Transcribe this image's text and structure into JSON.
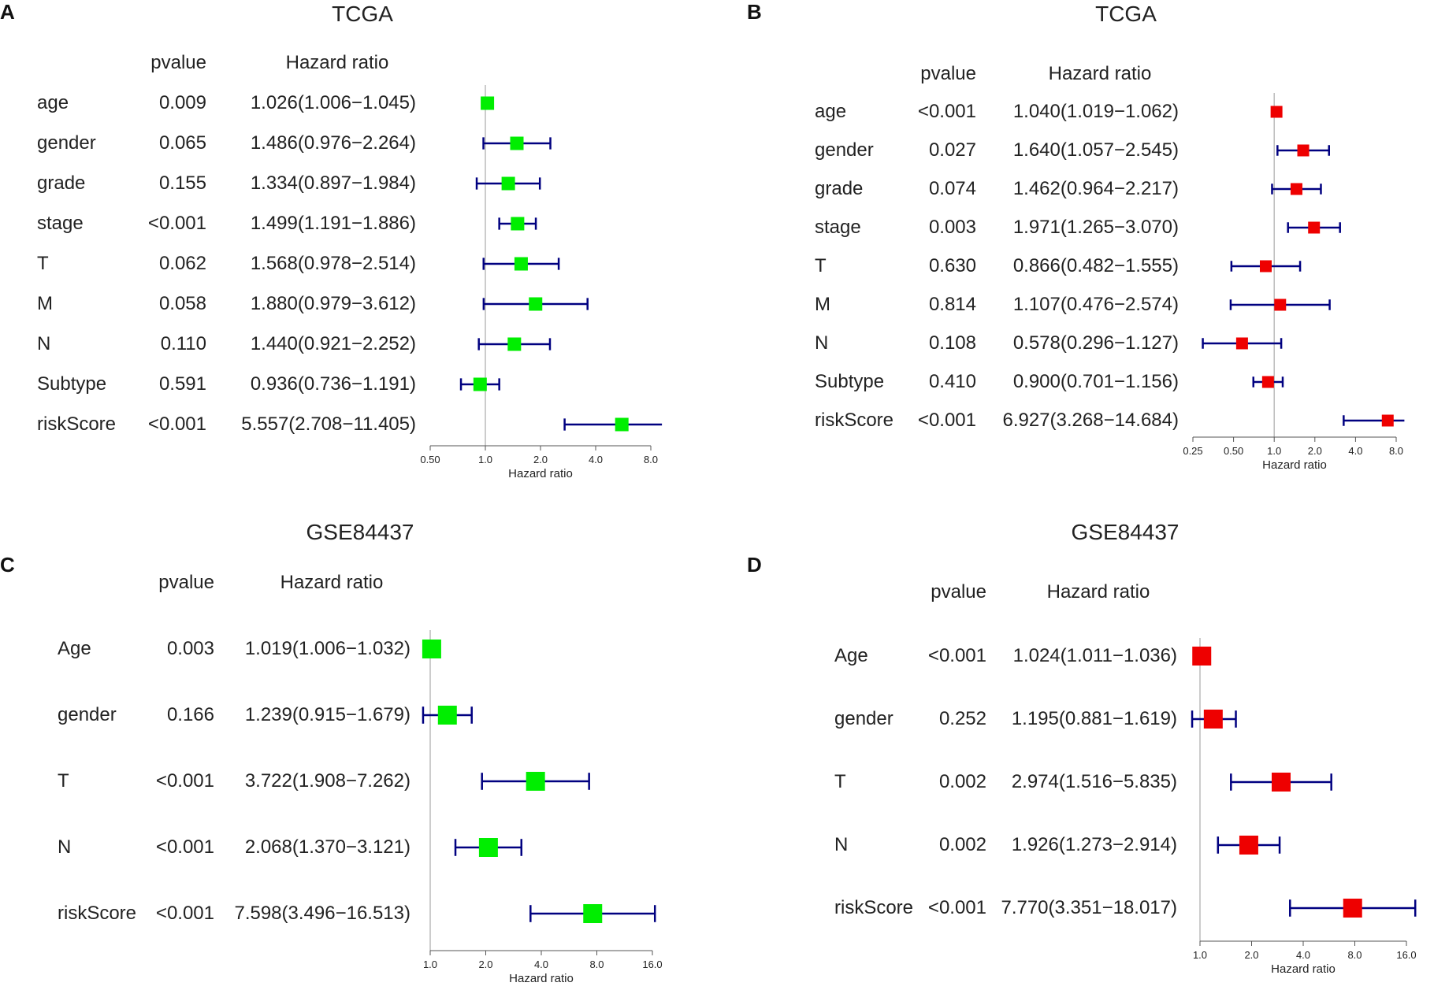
{
  "panels": [
    {
      "letter": "A",
      "chart_data": {
        "type": "forest",
        "title": "TCGA",
        "header_pvalue": "pvalue",
        "header_hr": "Hazard ratio",
        "xlabel": "Hazard ratio",
        "xscale": "log2",
        "xticks": [
          "0.50",
          "1.0",
          "2.0",
          "4.0",
          "8.0"
        ],
        "xtick_values": [
          0.5,
          1,
          2,
          4,
          8
        ],
        "xlim": [
          0.5,
          8
        ],
        "marker_color": "#00ee00",
        "whisker_color": "#000080",
        "rows": [
          {
            "label": "age",
            "pvalue": "0.009",
            "hr_text": "1.026(1.006−1.045)",
            "hr": 1.026,
            "lo": 1.006,
            "hi": 1.045
          },
          {
            "label": "gender",
            "pvalue": "0.065",
            "hr_text": "1.486(0.976−2.264)",
            "hr": 1.486,
            "lo": 0.976,
            "hi": 2.264
          },
          {
            "label": "grade",
            "pvalue": "0.155",
            "hr_text": "1.334(0.897−1.984)",
            "hr": 1.334,
            "lo": 0.897,
            "hi": 1.984
          },
          {
            "label": "stage",
            "pvalue": "<0.001",
            "hr_text": "1.499(1.191−1.886)",
            "hr": 1.499,
            "lo": 1.191,
            "hi": 1.886
          },
          {
            "label": "T",
            "pvalue": "0.062",
            "hr_text": "1.568(0.978−2.514)",
            "hr": 1.568,
            "lo": 0.978,
            "hi": 2.514
          },
          {
            "label": "M",
            "pvalue": "0.058",
            "hr_text": "1.880(0.979−3.612)",
            "hr": 1.88,
            "lo": 0.979,
            "hi": 3.612
          },
          {
            "label": "N",
            "pvalue": "0.110",
            "hr_text": "1.440(0.921−2.252)",
            "hr": 1.44,
            "lo": 0.921,
            "hi": 2.252
          },
          {
            "label": "Subtype",
            "pvalue": "0.591",
            "hr_text": "0.936(0.736−1.191)",
            "hr": 0.936,
            "lo": 0.736,
            "hi": 1.191
          },
          {
            "label": "riskScore",
            "pvalue": "<0.001",
            "hr_text": "5.557(2.708−11.405)",
            "hr": 5.557,
            "lo": 2.708,
            "hi": 11.405
          }
        ]
      }
    },
    {
      "letter": "B",
      "chart_data": {
        "type": "forest",
        "title": "TCGA",
        "header_pvalue": "pvalue",
        "header_hr": "Hazard ratio",
        "xlabel": "Hazard ratio",
        "xscale": "log2",
        "xticks": [
          "0.25",
          "0.50",
          "1.0",
          "2.0",
          "4.0",
          "8.0"
        ],
        "xtick_values": [
          0.25,
          0.5,
          1,
          2,
          4,
          8
        ],
        "xlim": [
          0.25,
          8
        ],
        "marker_color": "#ee0000",
        "whisker_color": "#000080",
        "rows": [
          {
            "label": "age",
            "pvalue": "<0.001",
            "hr_text": "1.040(1.019−1.062)",
            "hr": 1.04,
            "lo": 1.019,
            "hi": 1.062
          },
          {
            "label": "gender",
            "pvalue": "0.027",
            "hr_text": "1.640(1.057−2.545)",
            "hr": 1.64,
            "lo": 1.057,
            "hi": 2.545
          },
          {
            "label": "grade",
            "pvalue": "0.074",
            "hr_text": "1.462(0.964−2.217)",
            "hr": 1.462,
            "lo": 0.964,
            "hi": 2.217
          },
          {
            "label": "stage",
            "pvalue": "0.003",
            "hr_text": "1.971(1.265−3.070)",
            "hr": 1.971,
            "lo": 1.265,
            "hi": 3.07
          },
          {
            "label": "T",
            "pvalue": "0.630",
            "hr_text": "0.866(0.482−1.555)",
            "hr": 0.866,
            "lo": 0.482,
            "hi": 1.555
          },
          {
            "label": "M",
            "pvalue": "0.814",
            "hr_text": "1.107(0.476−2.574)",
            "hr": 1.107,
            "lo": 0.476,
            "hi": 2.574
          },
          {
            "label": "N",
            "pvalue": "0.108",
            "hr_text": "0.578(0.296−1.127)",
            "hr": 0.578,
            "lo": 0.296,
            "hi": 1.127
          },
          {
            "label": "Subtype",
            "pvalue": "0.410",
            "hr_text": "0.900(0.701−1.156)",
            "hr": 0.9,
            "lo": 0.701,
            "hi": 1.156
          },
          {
            "label": "riskScore",
            "pvalue": "<0.001",
            "hr_text": "6.927(3.268−14.684)",
            "hr": 6.927,
            "lo": 3.268,
            "hi": 14.684
          }
        ]
      }
    },
    {
      "letter": "C",
      "chart_data": {
        "type": "forest",
        "title": "GSE84437",
        "header_pvalue": "pvalue",
        "header_hr": "Hazard ratio",
        "xlabel": "Hazard ratio",
        "xscale": "log2",
        "xticks": [
          "1.0",
          "2.0",
          "4.0",
          "8.0",
          "16.0"
        ],
        "xtick_values": [
          1,
          2,
          4,
          8,
          16
        ],
        "xlim": [
          1,
          16
        ],
        "marker_color": "#00ee00",
        "whisker_color": "#000080",
        "rows": [
          {
            "label": "Age",
            "pvalue": "0.003",
            "hr_text": "1.019(1.006−1.032)",
            "hr": 1.019,
            "lo": 1.006,
            "hi": 1.032
          },
          {
            "label": "gender",
            "pvalue": "0.166",
            "hr_text": "1.239(0.915−1.679)",
            "hr": 1.239,
            "lo": 0.915,
            "hi": 1.679
          },
          {
            "label": "T",
            "pvalue": "<0.001",
            "hr_text": "3.722(1.908−7.262)",
            "hr": 3.722,
            "lo": 1.908,
            "hi": 7.262
          },
          {
            "label": "N",
            "pvalue": "<0.001",
            "hr_text": "2.068(1.370−3.121)",
            "hr": 2.068,
            "lo": 1.37,
            "hi": 3.121
          },
          {
            "label": "riskScore",
            "pvalue": "<0.001",
            "hr_text": "7.598(3.496−16.513)",
            "hr": 7.598,
            "lo": 3.496,
            "hi": 16.513
          }
        ]
      }
    },
    {
      "letter": "D",
      "chart_data": {
        "type": "forest",
        "title": "GSE84437",
        "header_pvalue": "pvalue",
        "header_hr": "Hazard ratio",
        "xlabel": "Hazard ratio",
        "xscale": "log2",
        "xticks": [
          "1.0",
          "2.0",
          "4.0",
          "8.0",
          "16.0"
        ],
        "xtick_values": [
          1,
          2,
          4,
          8,
          16
        ],
        "xlim": [
          1,
          16
        ],
        "marker_color": "#ee0000",
        "whisker_color": "#000080",
        "rows": [
          {
            "label": "Age",
            "pvalue": "<0.001",
            "hr_text": "1.024(1.011−1.036)",
            "hr": 1.024,
            "lo": 1.011,
            "hi": 1.036
          },
          {
            "label": "gender",
            "pvalue": "0.252",
            "hr_text": "1.195(0.881−1.619)",
            "hr": 1.195,
            "lo": 0.881,
            "hi": 1.619
          },
          {
            "label": "T",
            "pvalue": "0.002",
            "hr_text": "2.974(1.516−5.835)",
            "hr": 2.974,
            "lo": 1.516,
            "hi": 5.835
          },
          {
            "label": "N",
            "pvalue": "0.002",
            "hr_text": "1.926(1.273−2.914)",
            "hr": 1.926,
            "lo": 1.273,
            "hi": 2.914
          },
          {
            "label": "riskScore",
            "pvalue": "<0.001",
            "hr_text": "7.770(3.351−18.017)",
            "hr": 7.77,
            "lo": 3.351,
            "hi": 18.017
          }
        ]
      }
    }
  ]
}
